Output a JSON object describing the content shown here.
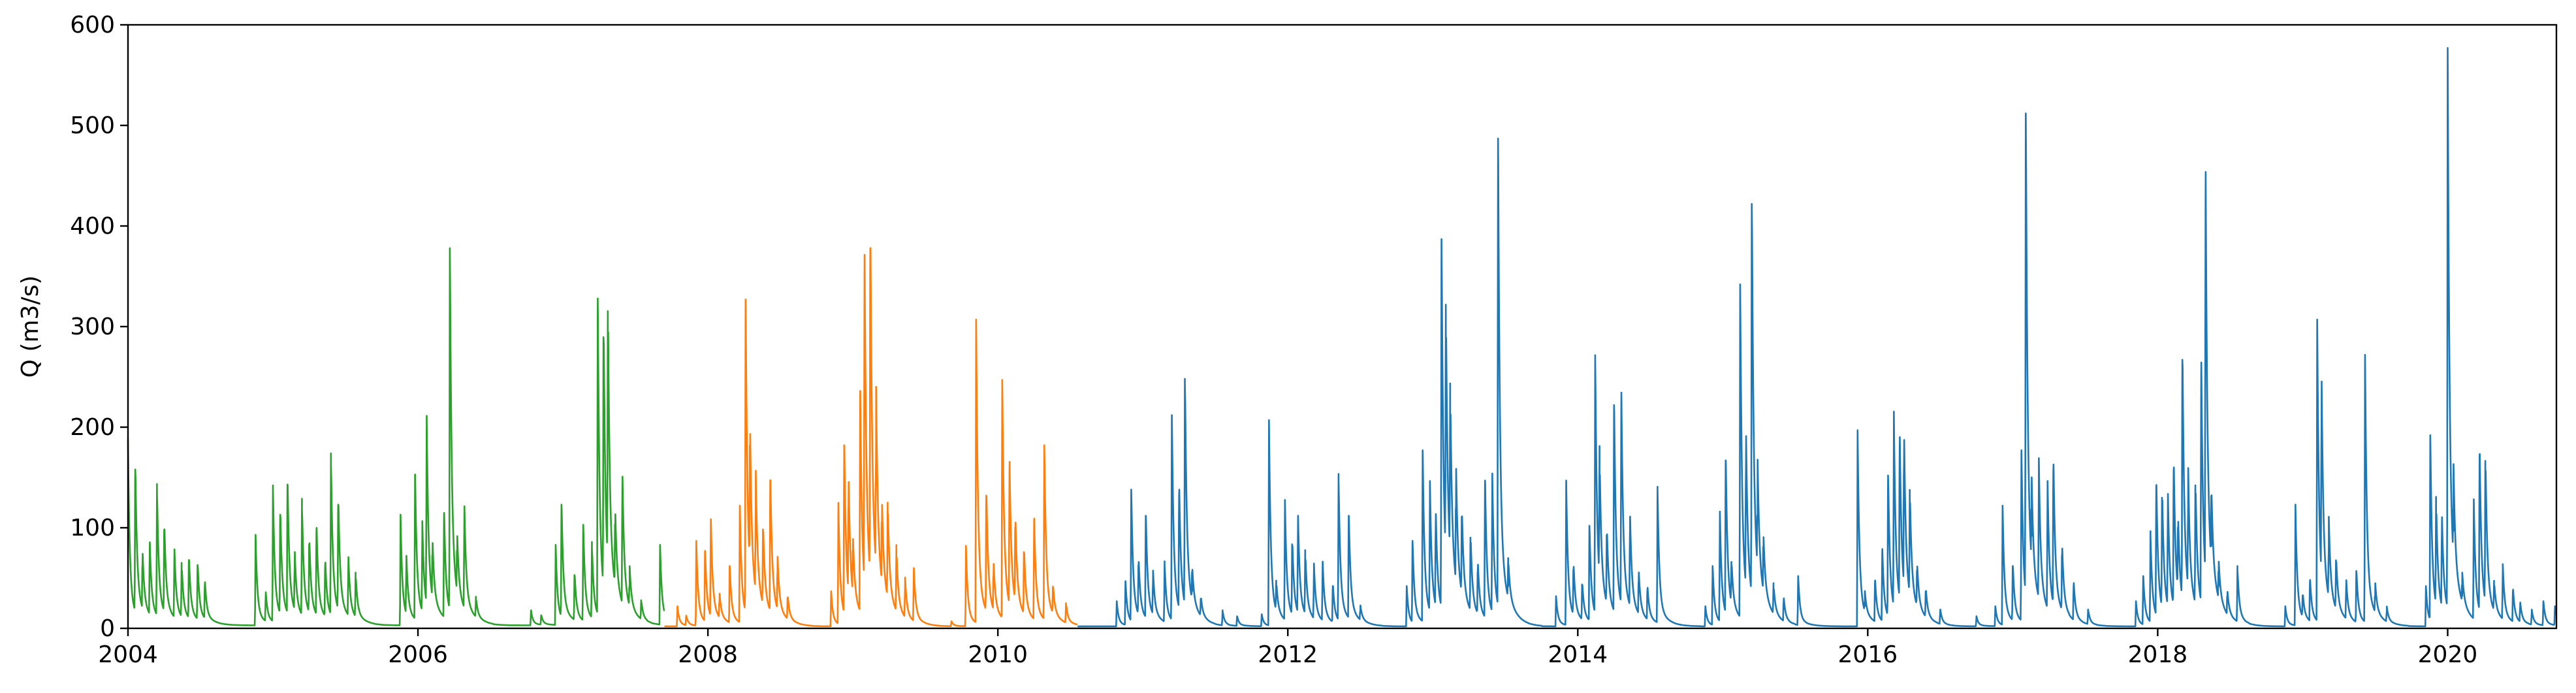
{
  "chart_data": {
    "type": "line",
    "title": "",
    "xlabel": "",
    "ylabel": "Q (m3/s)",
    "xlim": [
      2004.0,
      2020.75
    ],
    "ylim": [
      0,
      600
    ],
    "grid": false,
    "legend": "none",
    "x_ticks": [
      "2004",
      "2006",
      "2008",
      "2010",
      "2012",
      "2014",
      "2016",
      "2018",
      "2020"
    ],
    "y_ticks": [
      "0",
      "100",
      "200",
      "300",
      "400",
      "500",
      "600"
    ],
    "series": [
      {
        "color": "#2ca02c",
        "x_range": [
          2004.0,
          2007.7
        ],
        "baseflow": 3,
        "peaks": [
          [
            2004.0,
            185
          ],
          [
            2004.05,
            155
          ],
          [
            2004.1,
            60
          ],
          [
            2004.15,
            75
          ],
          [
            2004.2,
            130
          ],
          [
            2004.25,
            95
          ],
          [
            2004.32,
            70
          ],
          [
            2004.37,
            55
          ],
          [
            2004.42,
            65
          ],
          [
            2004.48,
            60
          ],
          [
            2004.53,
            40
          ],
          [
            2004.88,
            90
          ],
          [
            2004.95,
            30
          ],
          [
            2005.0,
            135
          ],
          [
            2005.05,
            110
          ],
          [
            2005.1,
            140
          ],
          [
            2005.15,
            60
          ],
          [
            2005.2,
            115
          ],
          [
            2005.25,
            80
          ],
          [
            2005.3,
            95
          ],
          [
            2005.36,
            60
          ],
          [
            2005.4,
            160
          ],
          [
            2005.45,
            120
          ],
          [
            2005.52,
            60
          ],
          [
            2005.57,
            45
          ],
          [
            2005.88,
            110
          ],
          [
            2005.92,
            60
          ],
          [
            2005.98,
            150
          ],
          [
            2006.03,
            90
          ],
          [
            2006.06,
            190
          ],
          [
            2006.1,
            60
          ],
          [
            2006.18,
            110
          ],
          [
            2006.22,
            375
          ],
          [
            2006.27,
            60
          ],
          [
            2006.32,
            105
          ],
          [
            2006.4,
            20
          ],
          [
            2006.78,
            15
          ],
          [
            2006.85,
            10
          ],
          [
            2006.95,
            80
          ],
          [
            2006.99,
            120
          ],
          [
            2007.08,
            50
          ],
          [
            2007.14,
            100
          ],
          [
            2007.2,
            75
          ],
          [
            2007.24,
            325
          ],
          [
            2007.28,
            285
          ],
          [
            2007.31,
            275
          ],
          [
            2007.36,
            80
          ],
          [
            2007.41,
            135
          ],
          [
            2007.46,
            40
          ],
          [
            2007.54,
            20
          ],
          [
            2007.67,
            80
          ]
        ]
      },
      {
        "color": "#ff7f0e",
        "x_range": [
          2007.7,
          2010.55
        ],
        "baseflow": 2,
        "peaks": [
          [
            2007.79,
            20
          ],
          [
            2007.85,
            10
          ],
          [
            2007.92,
            85
          ],
          [
            2007.98,
            75
          ],
          [
            2008.02,
            100
          ],
          [
            2008.08,
            25
          ],
          [
            2008.15,
            60
          ],
          [
            2008.22,
            120
          ],
          [
            2008.26,
            325
          ],
          [
            2008.29,
            155
          ],
          [
            2008.33,
            120
          ],
          [
            2008.38,
            85
          ],
          [
            2008.43,
            145
          ],
          [
            2008.48,
            55
          ],
          [
            2008.55,
            25
          ],
          [
            2008.85,
            35
          ],
          [
            2008.9,
            120
          ],
          [
            2008.94,
            180
          ],
          [
            2008.97,
            120
          ],
          [
            2009.0,
            60
          ],
          [
            2009.05,
            230
          ],
          [
            2009.08,
            345
          ],
          [
            2009.12,
            375
          ],
          [
            2009.16,
            180
          ],
          [
            2009.2,
            85
          ],
          [
            2009.24,
            100
          ],
          [
            2009.3,
            65
          ],
          [
            2009.36,
            40
          ],
          [
            2009.42,
            55
          ],
          [
            2009.68,
            5
          ],
          [
            2009.78,
            80
          ],
          [
            2009.85,
            305
          ],
          [
            2009.92,
            130
          ],
          [
            2009.97,
            50
          ],
          [
            2010.03,
            245
          ],
          [
            2010.08,
            150
          ],
          [
            2010.12,
            90
          ],
          [
            2010.18,
            70
          ],
          [
            2010.25,
            105
          ],
          [
            2010.32,
            180
          ],
          [
            2010.38,
            30
          ],
          [
            2010.47,
            20
          ]
        ]
      },
      {
        "color": "#1f77b4",
        "x_range": [
          2010.55,
          2020.75
        ],
        "baseflow": 2,
        "peaks": [
          [
            2010.82,
            25
          ],
          [
            2010.88,
            45
          ],
          [
            2010.92,
            135
          ],
          [
            2010.97,
            60
          ],
          [
            2011.02,
            110
          ],
          [
            2011.07,
            45
          ],
          [
            2011.15,
            60
          ],
          [
            2011.2,
            210
          ],
          [
            2011.25,
            130
          ],
          [
            2011.29,
            240
          ],
          [
            2011.34,
            35
          ],
          [
            2011.4,
            20
          ],
          [
            2011.55,
            15
          ],
          [
            2011.65,
            10
          ],
          [
            2011.82,
            12
          ],
          [
            2011.87,
            205
          ],
          [
            2011.92,
            30
          ],
          [
            2011.98,
            120
          ],
          [
            2012.03,
            80
          ],
          [
            2012.07,
            100
          ],
          [
            2012.12,
            65
          ],
          [
            2012.18,
            55
          ],
          [
            2012.24,
            60
          ],
          [
            2012.31,
            40
          ],
          [
            2012.35,
            145
          ],
          [
            2012.42,
            110
          ],
          [
            2012.5,
            15
          ],
          [
            2012.82,
            40
          ],
          [
            2012.86,
            85
          ],
          [
            2012.93,
            175
          ],
          [
            2012.98,
            130
          ],
          [
            2013.02,
            100
          ],
          [
            2013.06,
            385
          ],
          [
            2013.09,
            265
          ],
          [
            2013.12,
            175
          ],
          [
            2013.16,
            120
          ],
          [
            2013.2,
            90
          ],
          [
            2013.26,
            80
          ],
          [
            2013.31,
            55
          ],
          [
            2013.36,
            145
          ],
          [
            2013.41,
            140
          ],
          [
            2013.45,
            485
          ],
          [
            2013.52,
            40
          ],
          [
            2013.85,
            30
          ],
          [
            2013.92,
            145
          ],
          [
            2013.97,
            55
          ],
          [
            2014.03,
            40
          ],
          [
            2014.08,
            100
          ],
          [
            2014.12,
            265
          ],
          [
            2014.15,
            130
          ],
          [
            2014.2,
            80
          ],
          [
            2014.25,
            220
          ],
          [
            2014.3,
            220
          ],
          [
            2014.36,
            95
          ],
          [
            2014.42,
            45
          ],
          [
            2014.48,
            35
          ],
          [
            2014.55,
            135
          ],
          [
            2014.88,
            20
          ],
          [
            2014.93,
            60
          ],
          [
            2014.98,
            110
          ],
          [
            2015.02,
            165
          ],
          [
            2015.06,
            45
          ],
          [
            2015.12,
            340
          ],
          [
            2015.16,
            160
          ],
          [
            2015.2,
            420
          ],
          [
            2015.24,
            110
          ],
          [
            2015.28,
            60
          ],
          [
            2015.35,
            30
          ],
          [
            2015.42,
            25
          ],
          [
            2015.52,
            50
          ],
          [
            2015.93,
            195
          ],
          [
            2015.98,
            20
          ],
          [
            2016.05,
            45
          ],
          [
            2016.1,
            75
          ],
          [
            2016.14,
            150
          ],
          [
            2016.18,
            195
          ],
          [
            2016.22,
            175
          ],
          [
            2016.25,
            160
          ],
          [
            2016.29,
            110
          ],
          [
            2016.34,
            45
          ],
          [
            2016.4,
            30
          ],
          [
            2016.5,
            15
          ],
          [
            2016.75,
            10
          ],
          [
            2016.88,
            20
          ],
          [
            2016.93,
            120
          ],
          [
            2017.0,
            60
          ],
          [
            2017.06,
            175
          ],
          [
            2017.09,
            510
          ],
          [
            2017.13,
            90
          ],
          [
            2017.18,
            140
          ],
          [
            2017.24,
            130
          ],
          [
            2017.28,
            155
          ],
          [
            2017.34,
            70
          ],
          [
            2017.42,
            40
          ],
          [
            2017.52,
            15
          ],
          [
            2017.85,
            25
          ],
          [
            2017.9,
            50
          ],
          [
            2017.95,
            90
          ],
          [
            2017.99,
            140
          ],
          [
            2018.03,
            125
          ],
          [
            2018.07,
            115
          ],
          [
            2018.11,
            155
          ],
          [
            2018.14,
            80
          ],
          [
            2018.17,
            265
          ],
          [
            2018.21,
            120
          ],
          [
            2018.26,
            130
          ],
          [
            2018.3,
            250
          ],
          [
            2018.33,
            425
          ],
          [
            2018.37,
            80
          ],
          [
            2018.42,
            40
          ],
          [
            2018.48,
            25
          ],
          [
            2018.55,
            55
          ],
          [
            2018.88,
            20
          ],
          [
            2018.95,
            120
          ],
          [
            2019.0,
            25
          ],
          [
            2019.05,
            45
          ],
          [
            2019.1,
            305
          ],
          [
            2019.13,
            205
          ],
          [
            2019.18,
            80
          ],
          [
            2019.23,
            55
          ],
          [
            2019.3,
            40
          ],
          [
            2019.37,
            55
          ],
          [
            2019.43,
            270
          ],
          [
            2019.5,
            30
          ],
          [
            2019.58,
            15
          ],
          [
            2019.85,
            40
          ],
          [
            2019.88,
            190
          ],
          [
            2019.92,
            110
          ],
          [
            2019.96,
            95
          ],
          [
            2020.0,
            575
          ],
          [
            2020.04,
            95
          ],
          [
            2020.1,
            30
          ],
          [
            2020.18,
            120
          ],
          [
            2020.22,
            170
          ],
          [
            2020.26,
            155
          ],
          [
            2020.32,
            30
          ],
          [
            2020.38,
            55
          ],
          [
            2020.45,
            35
          ],
          [
            2020.5,
            20
          ],
          [
            2020.58,
            15
          ],
          [
            2020.66,
            25
          ],
          [
            2020.74,
            20
          ]
        ]
      }
    ]
  }
}
